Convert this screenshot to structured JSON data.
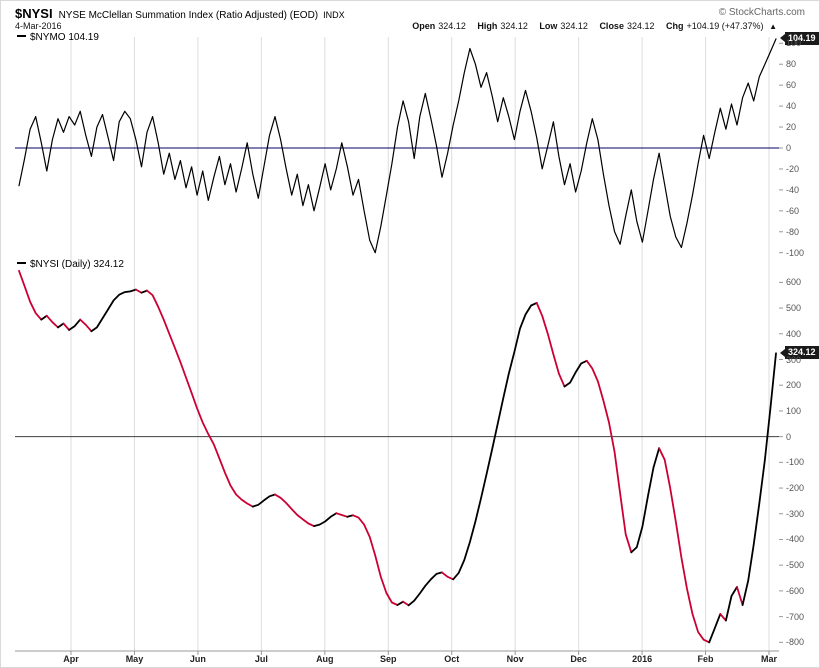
{
  "header": {
    "symbol": "$NYSI",
    "title": "NYSE McClellan Summation Index (Ratio Adjusted) (EOD)",
    "exchange": "INDX",
    "copyright": "© StockCharts.com",
    "date": "4-Mar-2016",
    "quote": {
      "open_label": "Open",
      "open": "324.12",
      "high_label": "High",
      "high": "324.12",
      "low_label": "Low",
      "low": "324.12",
      "close_label": "Close",
      "close": "324.12",
      "chg_label": "Chg",
      "chg": "+104.19 (+47.37%)",
      "arrow": "▲"
    }
  },
  "xaxis": {
    "labels": [
      "Apr",
      "May",
      "Jun",
      "Jul",
      "Aug",
      "Sep",
      "Oct",
      "Nov",
      "Dec",
      "2016",
      "Feb",
      "Mar"
    ],
    "grid_color": "#dddddd",
    "axis_color": "#999999",
    "label_color": "#222222"
  },
  "chart_data": [
    {
      "type": "line",
      "name": "$NYMO",
      "legend": "$NYMO 104.19",
      "last_value": 104.19,
      "line_color": "#000000",
      "zero_line_color": "#000066",
      "ylim": [
        -106,
        106
      ],
      "yticks": [
        100,
        80,
        60,
        40,
        20,
        0,
        -20,
        -40,
        -60,
        -80,
        -100
      ],
      "price_label": {
        "text": "104.19",
        "bg": "#1a1a1a",
        "fg": "#ffffff"
      },
      "values": [
        -36,
        -10,
        18,
        30,
        5,
        -22,
        8,
        28,
        15,
        30,
        22,
        35,
        12,
        -8,
        20,
        32,
        10,
        -12,
        25,
        35,
        28,
        8,
        -18,
        15,
        30,
        5,
        -25,
        -5,
        -30,
        -12,
        -38,
        -18,
        -45,
        -22,
        -50,
        -28,
        -8,
        -35,
        -15,
        -42,
        -20,
        5,
        -25,
        -48,
        -18,
        12,
        30,
        8,
        -20,
        -45,
        -25,
        -55,
        -35,
        -60,
        -38,
        -15,
        -40,
        -20,
        5,
        -18,
        -45,
        -30,
        -60,
        -88,
        -100,
        -75,
        -45,
        -15,
        20,
        45,
        25,
        -10,
        30,
        52,
        28,
        2,
        -28,
        -5,
        22,
        45,
        72,
        95,
        80,
        58,
        72,
        50,
        25,
        48,
        30,
        8,
        35,
        55,
        35,
        10,
        -20,
        2,
        25,
        -8,
        -35,
        -15,
        -42,
        -22,
        5,
        28,
        8,
        -25,
        -55,
        -80,
        -92,
        -65,
        -40,
        -70,
        -90,
        -60,
        -30,
        -5,
        -35,
        -65,
        -85,
        -95,
        -72,
        -45,
        -15,
        12,
        -10,
        15,
        38,
        18,
        42,
        22,
        48,
        62,
        45,
        68,
        80,
        92,
        104.19
      ]
    },
    {
      "type": "line",
      "name": "$NYSI",
      "legend": "$NYSI (Daily) 324.12",
      "last_value": 324.12,
      "color_mode": "up_down",
      "up_color": "#000000",
      "down_color": "#cc0033",
      "zero_line_color": "#404040",
      "ylim": [
        -826,
        652
      ],
      "yticks": [
        600,
        500,
        400,
        300,
        200,
        100,
        0,
        -100,
        -200,
        -300,
        -400,
        -500,
        -600,
        -700,
        -800
      ],
      "price_label": {
        "text": "324.12",
        "bg": "#1a1a1a",
        "fg": "#ffffff"
      },
      "values": [
        645,
        585,
        525,
        480,
        455,
        470,
        445,
        425,
        440,
        415,
        430,
        455,
        435,
        410,
        425,
        460,
        495,
        530,
        552,
        562,
        565,
        572,
        560,
        568,
        550,
        505,
        455,
        400,
        345,
        290,
        230,
        170,
        110,
        55,
        10,
        -30,
        -85,
        -140,
        -190,
        -225,
        -245,
        -260,
        -272,
        -265,
        -248,
        -232,
        -225,
        -238,
        -258,
        -282,
        -305,
        -322,
        -338,
        -348,
        -342,
        -330,
        -312,
        -298,
        -305,
        -312,
        -306,
        -315,
        -342,
        -390,
        -462,
        -545,
        -608,
        -645,
        -655,
        -642,
        -656,
        -638,
        -610,
        -580,
        -555,
        -534,
        -528,
        -545,
        -555,
        -530,
        -480,
        -410,
        -330,
        -240,
        -145,
        -50,
        50,
        150,
        245,
        330,
        420,
        475,
        510,
        520,
        470,
        400,
        320,
        245,
        195,
        210,
        250,
        285,
        295,
        265,
        215,
        140,
        55,
        -60,
        -220,
        -380,
        -450,
        -430,
        -350,
        -230,
        -120,
        -45,
        -90,
        -200,
        -330,
        -470,
        -590,
        -690,
        -760,
        -790,
        -800,
        -745,
        -690,
        -715,
        -620,
        -585,
        -655,
        -560,
        -420,
        -260,
        -90,
        110,
        324.12
      ]
    }
  ]
}
